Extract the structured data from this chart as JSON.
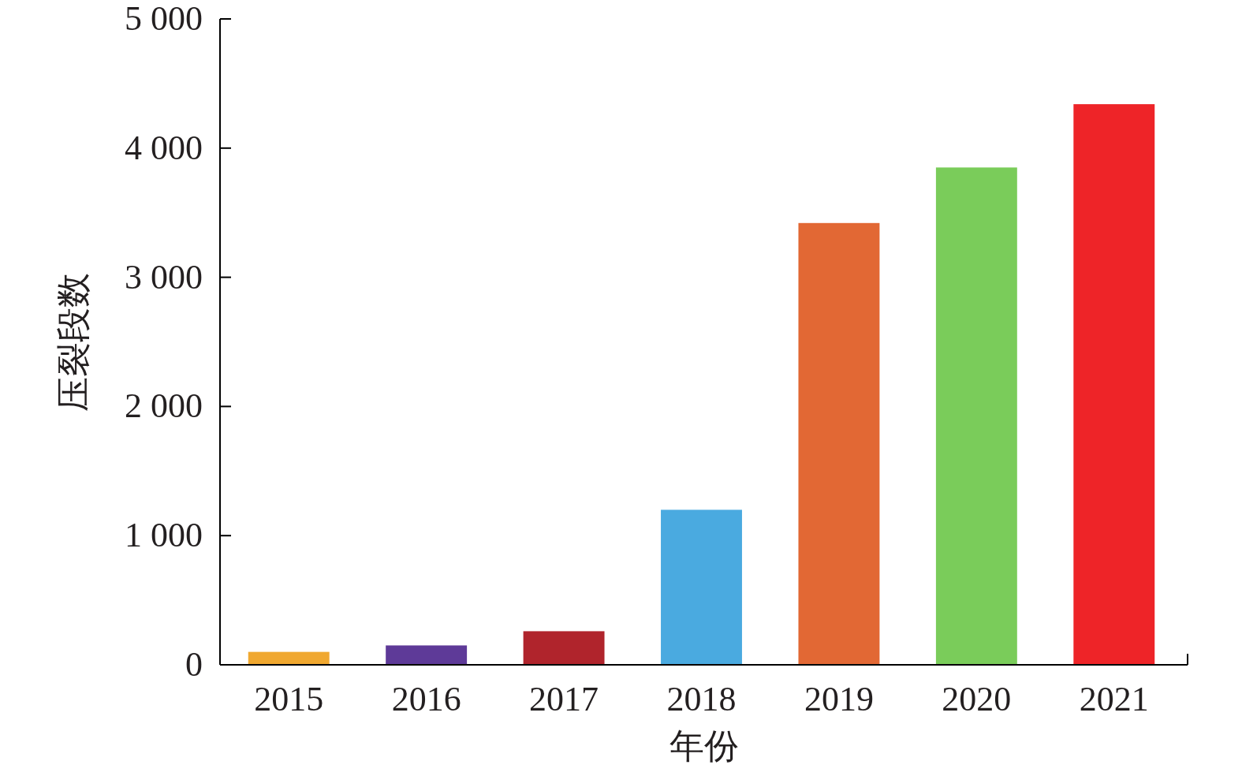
{
  "chart_data": {
    "type": "bar",
    "xlabel": "年份",
    "ylabel": "压裂段数",
    "categories": [
      "2015",
      "2016",
      "2017",
      "2018",
      "2019",
      "2020",
      "2021"
    ],
    "values": [
      100,
      150,
      260,
      1200,
      3420,
      3850,
      4340
    ],
    "colors": [
      "#f0a830",
      "#5e3a98",
      "#b0242c",
      "#4aaae0",
      "#e26834",
      "#7acc5a",
      "#ee2428"
    ],
    "ylim": [
      0,
      5000
    ],
    "yticks": [
      {
        "value": 0,
        "label": "0"
      },
      {
        "value": 1000,
        "label": "1 000"
      },
      {
        "value": 2000,
        "label": "2 000"
      },
      {
        "value": 3000,
        "label": "3 000"
      },
      {
        "value": 4000,
        "label": "4 000"
      },
      {
        "value": 5000,
        "label": "5 000"
      }
    ],
    "grid": false
  }
}
